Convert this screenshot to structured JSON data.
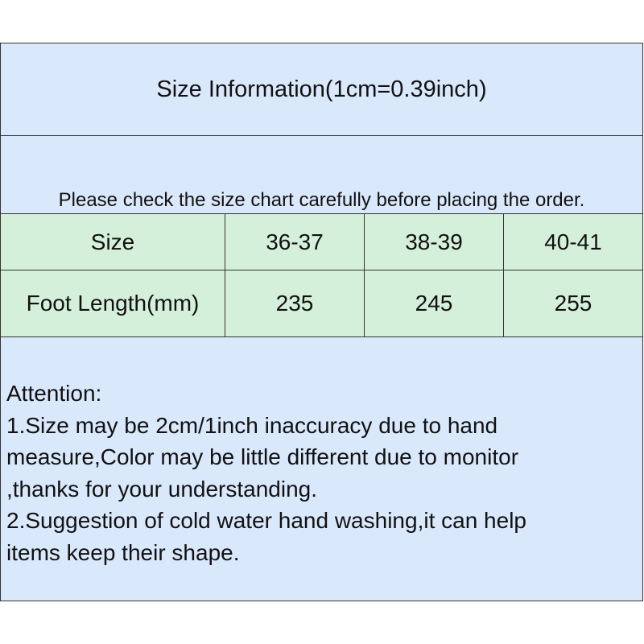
{
  "title": "Size Information(1cm=0.39inch)",
  "note": "Please check the size chart carefully before placing the order.",
  "table": {
    "header": [
      "Size",
      "36-37",
      "38-39",
      "40-41"
    ],
    "rows": [
      [
        "Foot Length(mm)",
        "235",
        "245",
        "255"
      ]
    ]
  },
  "attention": {
    "lines": [
      "Attention:",
      "1.Size may be 2cm/1inch inaccuracy due to hand",
      "measure,Color may be little different due to monitor",
      ",thanks for your understanding.",
      "2.Suggestion of cold water hand washing,it can help",
      "items keep their shape."
    ]
  },
  "colors": {
    "header_bg": "#dae8fc",
    "table_bg": "#d5f0da",
    "border": "#333333"
  }
}
